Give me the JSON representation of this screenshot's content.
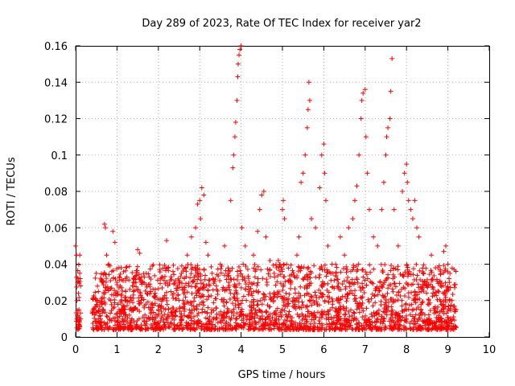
{
  "chart_data": {
    "type": "scatter",
    "title": "Day 289 of 2023, Rate Of TEC Index for receiver yar2",
    "xlabel": "GPS time / hours",
    "ylabel": "ROTI / TECUs",
    "xlim": [
      0,
      10
    ],
    "ylim": [
      0,
      0.16
    ],
    "xticks": [
      0,
      1,
      2,
      3,
      4,
      5,
      6,
      7,
      8,
      9,
      10
    ],
    "yticks": [
      0,
      0.02,
      0.04,
      0.06,
      0.08,
      0.1,
      0.12,
      0.14,
      0.16
    ],
    "xtick_labels": [
      "0",
      "1",
      "2",
      "3",
      "4",
      "5",
      "6",
      "7",
      "8",
      "9",
      "10"
    ],
    "ytick_labels": [
      "0",
      "0.02",
      "0.04",
      "0.06",
      "0.08",
      "0.1",
      "0.12",
      "0.14",
      "0.16"
    ],
    "grid": true,
    "marker": "+",
    "color": "#ff0000",
    "series": [
      {
        "points": [
          [
            0.0,
            0.05
          ],
          [
            0.02,
            0.045
          ],
          [
            0.03,
            0.02
          ],
          [
            0.04,
            0.012
          ],
          [
            0.05,
            0.03
          ],
          [
            0.06,
            0.009
          ],
          [
            0.07,
            0.024
          ],
          [
            0.08,
            0.015
          ],
          [
            0.1,
            0.045
          ],
          [
            0.1,
            0.035
          ],
          [
            0.12,
            0.01
          ],
          [
            0.12,
            0.028
          ],
          [
            0.45,
            0.015
          ],
          [
            0.5,
            0.035
          ],
          [
            0.55,
            0.025
          ],
          [
            0.6,
            0.01
          ],
          [
            0.65,
            0.03
          ],
          [
            0.7,
            0.062
          ],
          [
            0.72,
            0.06
          ],
          [
            0.75,
            0.045
          ],
          [
            0.8,
            0.04
          ],
          [
            0.85,
            0.02
          ],
          [
            0.9,
            0.058
          ],
          [
            0.95,
            0.052
          ],
          [
            1.0,
            0.03
          ],
          [
            1.05,
            0.015
          ],
          [
            1.1,
            0.038
          ],
          [
            1.2,
            0.02
          ],
          [
            1.3,
            0.012
          ],
          [
            1.4,
            0.025
          ],
          [
            1.5,
            0.048
          ],
          [
            1.55,
            0.046
          ],
          [
            1.6,
            0.03
          ],
          [
            1.7,
            0.018
          ],
          [
            1.8,
            0.01
          ],
          [
            1.9,
            0.022
          ],
          [
            2.0,
            0.015
          ],
          [
            2.1,
            0.033
          ],
          [
            2.2,
            0.053
          ],
          [
            2.3,
            0.025
          ],
          [
            2.4,
            0.012
          ],
          [
            2.5,
            0.03
          ],
          [
            2.6,
            0.02
          ],
          [
            2.7,
            0.045
          ],
          [
            2.8,
            0.055
          ],
          [
            2.9,
            0.06
          ],
          [
            2.95,
            0.073
          ],
          [
            3.0,
            0.075
          ],
          [
            3.02,
            0.065
          ],
          [
            3.05,
            0.082
          ],
          [
            3.1,
            0.078
          ],
          [
            3.15,
            0.052
          ],
          [
            3.2,
            0.045
          ],
          [
            3.3,
            0.035
          ],
          [
            3.4,
            0.028
          ],
          [
            3.5,
            0.04
          ],
          [
            3.6,
            0.05
          ],
          [
            3.7,
            0.03
          ],
          [
            3.75,
            0.075
          ],
          [
            3.8,
            0.093
          ],
          [
            3.82,
            0.1
          ],
          [
            3.85,
            0.11
          ],
          [
            3.87,
            0.118
          ],
          [
            3.9,
            0.13
          ],
          [
            3.92,
            0.143
          ],
          [
            3.93,
            0.15
          ],
          [
            3.95,
            0.155
          ],
          [
            3.97,
            0.158
          ],
          [
            4.0,
            0.16
          ],
          [
            4.02,
            0.06
          ],
          [
            4.05,
            0.04
          ],
          [
            4.1,
            0.05
          ],
          [
            4.2,
            0.03
          ],
          [
            4.3,
            0.045
          ],
          [
            4.4,
            0.058
          ],
          [
            4.45,
            0.07
          ],
          [
            4.5,
            0.078
          ],
          [
            4.55,
            0.08
          ],
          [
            4.6,
            0.055
          ],
          [
            4.7,
            0.042
          ],
          [
            4.8,
            0.035
          ],
          [
            4.9,
            0.042
          ],
          [
            5.0,
            0.07
          ],
          [
            5.02,
            0.075
          ],
          [
            5.05,
            0.065
          ],
          [
            5.1,
            0.04
          ],
          [
            5.2,
            0.03
          ],
          [
            5.3,
            0.02
          ],
          [
            5.35,
            0.045
          ],
          [
            5.4,
            0.055
          ],
          [
            5.45,
            0.085
          ],
          [
            5.5,
            0.09
          ],
          [
            5.55,
            0.1
          ],
          [
            5.6,
            0.115
          ],
          [
            5.62,
            0.125
          ],
          [
            5.64,
            0.14
          ],
          [
            5.66,
            0.13
          ],
          [
            5.7,
            0.065
          ],
          [
            5.8,
            0.06
          ],
          [
            5.9,
            0.082
          ],
          [
            5.95,
            0.1
          ],
          [
            6.0,
            0.106
          ],
          [
            6.02,
            0.09
          ],
          [
            6.05,
            0.075
          ],
          [
            6.1,
            0.05
          ],
          [
            6.2,
            0.04
          ],
          [
            6.3,
            0.035
          ],
          [
            6.4,
            0.055
          ],
          [
            6.5,
            0.045
          ],
          [
            6.6,
            0.06
          ],
          [
            6.7,
            0.065
          ],
          [
            6.75,
            0.075
          ],
          [
            6.8,
            0.083
          ],
          [
            6.85,
            0.1
          ],
          [
            6.9,
            0.12
          ],
          [
            6.92,
            0.13
          ],
          [
            6.95,
            0.134
          ],
          [
            7.0,
            0.136
          ],
          [
            7.02,
            0.11
          ],
          [
            7.05,
            0.09
          ],
          [
            7.1,
            0.07
          ],
          [
            7.2,
            0.055
          ],
          [
            7.3,
            0.05
          ],
          [
            7.4,
            0.07
          ],
          [
            7.45,
            0.085
          ],
          [
            7.5,
            0.1
          ],
          [
            7.52,
            0.11
          ],
          [
            7.55,
            0.115
          ],
          [
            7.6,
            0.12
          ],
          [
            7.62,
            0.135
          ],
          [
            7.65,
            0.153
          ],
          [
            7.7,
            0.07
          ],
          [
            7.8,
            0.05
          ],
          [
            7.9,
            0.08
          ],
          [
            7.95,
            0.09
          ],
          [
            8.0,
            0.095
          ],
          [
            8.02,
            0.085
          ],
          [
            8.05,
            0.075
          ],
          [
            8.1,
            0.07
          ],
          [
            8.15,
            0.065
          ],
          [
            8.2,
            0.075
          ],
          [
            8.25,
            0.06
          ],
          [
            8.3,
            0.055
          ],
          [
            8.4,
            0.035
          ],
          [
            8.5,
            0.03
          ],
          [
            8.6,
            0.045
          ],
          [
            8.7,
            0.038
          ],
          [
            8.8,
            0.03
          ],
          [
            8.9,
            0.047
          ],
          [
            8.95,
            0.05
          ],
          [
            9.0,
            0.04
          ],
          [
            9.05,
            0.035
          ],
          [
            9.1,
            0.02
          ],
          [
            9.15,
            0.037
          ],
          [
            9.2,
            0.015
          ]
        ]
      }
    ],
    "dense_band": {
      "x_segments": [
        [
          0.0,
          0.12
        ],
        [
          0.4,
          9.2
        ]
      ],
      "y_range": [
        0.004,
        0.04
      ],
      "note_typical_level": 0.015
    }
  }
}
